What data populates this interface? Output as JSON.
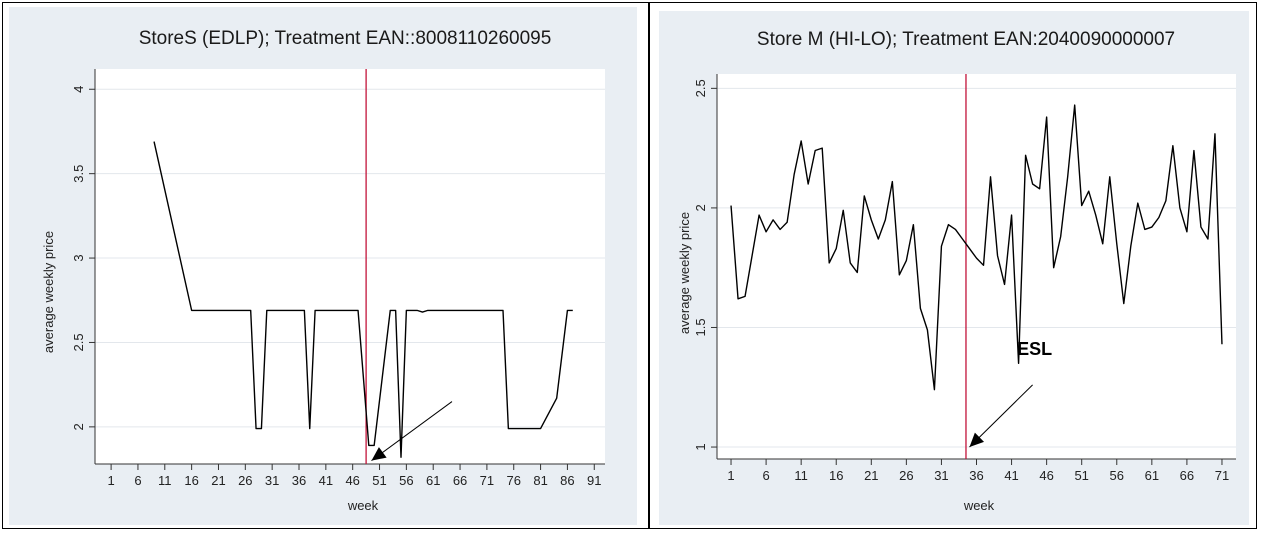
{
  "chart_data": [
    {
      "type": "line",
      "title": "StoreS (EDLP); Treatment EAN::8008110260095",
      "xlabel": "week",
      "ylabel": "average weekly price",
      "xlim": [
        -2,
        93
      ],
      "ylim": [
        1.78,
        4.12
      ],
      "xticks": [
        "1",
        "6",
        "11",
        "16",
        "21",
        "26",
        "31",
        "36",
        "41",
        "46",
        "51",
        "56",
        "61",
        "66",
        "71",
        "76",
        "81",
        "86",
        "91"
      ],
      "yticks": [
        "2",
        "2.5",
        "3",
        "3.5",
        "4"
      ],
      "grid": true,
      "vline_week": 48.5,
      "line_color": "#000000",
      "vline_color": "#c2143a",
      "x": [
        9,
        16,
        17,
        27,
        28,
        29,
        30,
        31,
        37,
        38,
        39,
        40,
        41,
        47,
        49,
        50,
        53,
        54,
        55,
        56,
        57,
        58,
        59,
        60,
        61,
        71,
        72,
        74,
        75,
        76,
        81,
        84,
        86,
        87
      ],
      "values": [
        3.69,
        2.69,
        2.69,
        2.69,
        1.99,
        1.99,
        2.69,
        2.69,
        2.69,
        1.99,
        2.69,
        2.69,
        2.69,
        2.69,
        1.89,
        1.89,
        2.69,
        2.69,
        1.82,
        2.69,
        2.69,
        2.69,
        2.68,
        2.69,
        2.69,
        2.69,
        2.69,
        2.69,
        1.99,
        1.99,
        1.99,
        2.17,
        2.69,
        2.69
      ],
      "arrow": {
        "from": [
          64.5,
          2.15
        ],
        "to": [
          49.5,
          1.8
        ]
      }
    },
    {
      "type": "line",
      "title": "Store M (HI-LO); Treatment EAN:2040090000007",
      "xlabel": "week",
      "ylabel": "average weekly price",
      "xlim": [
        -1,
        73
      ],
      "ylim": [
        0.95,
        2.56
      ],
      "xticks": [
        "1",
        "6",
        "11",
        "16",
        "21",
        "26",
        "31",
        "36",
        "41",
        "46",
        "51",
        "56",
        "61",
        "66",
        "71"
      ],
      "yticks": [
        "1",
        "1.5",
        "2",
        "2.5"
      ],
      "grid": true,
      "vline_week": 34.5,
      "line_color": "#000000",
      "vline_color": "#c2143a",
      "annotation": "ESL",
      "x": [
        1,
        2,
        3,
        4,
        5,
        6,
        7,
        8,
        9,
        10,
        11,
        12,
        13,
        14,
        15,
        16,
        17,
        18,
        19,
        20,
        21,
        22,
        23,
        24,
        25,
        26,
        27,
        28,
        29,
        30,
        31,
        32,
        33,
        34,
        35,
        36,
        37,
        38,
        39,
        40,
        41,
        42,
        43,
        44,
        45,
        46,
        47,
        48,
        49,
        50,
        51,
        52,
        53,
        54,
        55,
        56,
        57,
        58,
        59,
        60,
        61,
        62,
        63,
        64,
        65,
        66,
        67,
        68,
        69,
        70,
        71
      ],
      "values": [
        2.01,
        1.62,
        1.63,
        1.8,
        1.97,
        1.9,
        1.95,
        1.91,
        1.94,
        2.14,
        2.28,
        2.1,
        2.24,
        2.25,
        1.77,
        1.83,
        1.99,
        1.77,
        1.73,
        2.05,
        1.95,
        1.87,
        1.95,
        2.11,
        1.72,
        1.78,
        1.93,
        1.58,
        1.49,
        1.24,
        1.84,
        1.93,
        1.91,
        1.87,
        1.83,
        1.79,
        1.76,
        2.13,
        1.8,
        1.68,
        1.97,
        1.35,
        2.22,
        2.1,
        2.08,
        2.38,
        1.75,
        1.88,
        2.13,
        2.43,
        2.01,
        2.07,
        1.97,
        1.85,
        2.13,
        1.85,
        1.6,
        1.84,
        2.02,
        1.91,
        1.92,
        1.96,
        2.03,
        2.26,
        2.0,
        1.9,
        2.24,
        1.92,
        1.87,
        2.31,
        1.43
      ],
      "arrow": {
        "from": [
          44,
          1.26
        ],
        "to": [
          35,
          1.0
        ]
      }
    }
  ]
}
